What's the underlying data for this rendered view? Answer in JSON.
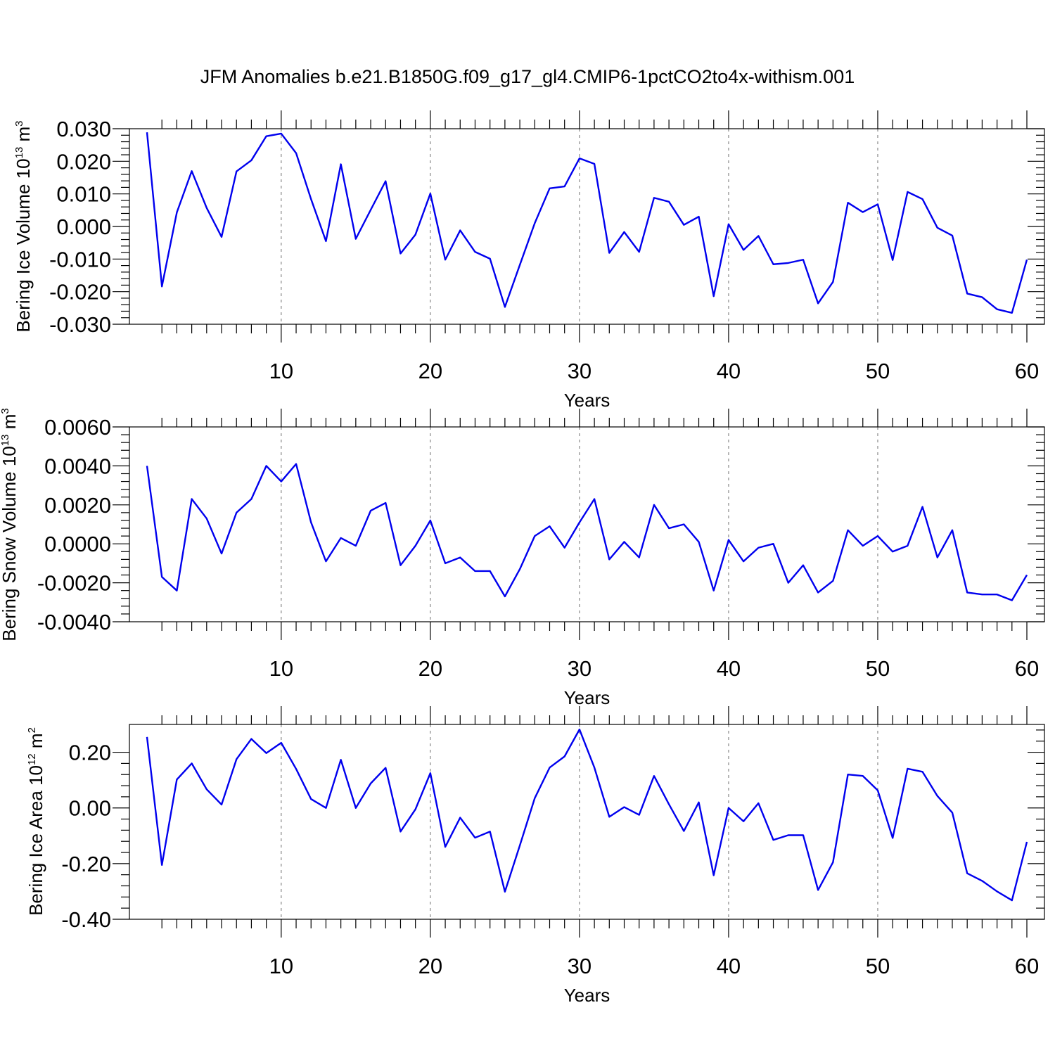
{
  "title": "JFM Anomalies b.e21.B1850G.f09_g17_gl4.CMIP6-1pctCO2to4x-withism.001",
  "colors": {
    "line": "#0000ee",
    "grid": "#888888"
  },
  "chart_data": [
    {
      "type": "line",
      "ylabel_main": "Bering Ice Volume 10",
      "ylabel_exp": "13",
      "ylabel_unit": " m",
      "ylabel_unit_exp": "3",
      "xlabel": "Years",
      "xlim": [
        1,
        60
      ],
      "ylim": [
        -0.03,
        0.03
      ],
      "xticks": [
        10,
        20,
        30,
        40,
        50,
        60
      ],
      "xtick_labels": [
        "10",
        "20",
        "30",
        "40",
        "50",
        "60"
      ],
      "yticks": [
        -0.03,
        -0.02,
        -0.01,
        0.0,
        0.01,
        0.02,
        0.03
      ],
      "ytick_labels": [
        "-0.030",
        "-0.020",
        "-0.010",
        "0.000",
        "0.010",
        "0.020",
        "0.030"
      ],
      "grid_x": [
        10,
        20,
        30,
        40,
        50
      ],
      "series": [
        {
          "values": [
            0.0289,
            -0.0184,
            0.0043,
            0.017,
            0.0057,
            -0.0032,
            0.0169,
            0.0203,
            0.0277,
            0.0285,
            0.0225,
            0.0084,
            -0.0045,
            0.0191,
            -0.0038,
            0.0051,
            0.0139,
            -0.0083,
            -0.0025,
            0.0101,
            -0.0102,
            -0.0012,
            -0.0078,
            -0.0099,
            -0.0247,
            -0.0118,
            0.001,
            0.0117,
            0.0123,
            0.0209,
            0.0192,
            -0.0081,
            -0.0017,
            -0.0078,
            0.0088,
            0.0076,
            0.0005,
            0.003,
            -0.0214,
            0.0007,
            -0.0072,
            -0.0029,
            -0.0116,
            -0.0112,
            -0.0102,
            -0.0236,
            -0.017,
            0.0073,
            0.0044,
            0.0068,
            -0.0103,
            0.0106,
            0.0084,
            -0.0004,
            -0.0028,
            -0.0206,
            -0.0217,
            -0.0254,
            -0.0265,
            -0.0102
          ]
        }
      ]
    },
    {
      "type": "line",
      "ylabel_main": "Bering Snow Volume 10",
      "ylabel_exp": "13",
      "ylabel_unit": " m",
      "ylabel_unit_exp": "3",
      "xlabel": "Years",
      "xlim": [
        1,
        60
      ],
      "ylim": [
        -0.004,
        0.006
      ],
      "xticks": [
        10,
        20,
        30,
        40,
        50,
        60
      ],
      "xtick_labels": [
        "10",
        "20",
        "30",
        "40",
        "50",
        "60"
      ],
      "yticks": [
        -0.004,
        -0.002,
        0.0,
        0.002,
        0.004,
        0.006
      ],
      "ytick_labels": [
        "-0.0040",
        "-0.0020",
        "0.0000",
        "0.0020",
        "0.0040",
        "0.0060"
      ],
      "grid_x": [
        10,
        20,
        30,
        40,
        50
      ],
      "series": [
        {
          "values": [
            0.004,
            -0.0017,
            -0.0024,
            0.0023,
            0.0013,
            -0.0005,
            0.0016,
            0.0023,
            0.004,
            0.0032,
            0.0041,
            0.0011,
            -0.0009,
            0.0003,
            -0.0001,
            0.0017,
            0.0021,
            -0.0011,
            -0.0001,
            0.0012,
            -0.001,
            -0.0007,
            -0.0014,
            -0.0014,
            -0.0027,
            -0.0013,
            0.0004,
            0.0009,
            -0.0002,
            0.0011,
            0.0023,
            -0.0008,
            0.0001,
            -0.0007,
            0.002,
            0.0008,
            0.001,
            0.0001,
            -0.0024,
            0.0002,
            -0.0009,
            -0.0002,
            -0.0,
            -0.002,
            -0.0011,
            -0.0025,
            -0.0019,
            0.0007,
            -0.0001,
            0.0004,
            -0.0004,
            -0.0001,
            0.0019,
            -0.0007,
            0.0007,
            -0.0025,
            -0.0026,
            -0.0026,
            -0.0029,
            -0.0016
          ]
        }
      ]
    },
    {
      "type": "line",
      "ylabel_main": "Bering Ice Area 10",
      "ylabel_exp": "12",
      "ylabel_unit": " m",
      "ylabel_unit_exp": "2",
      "xlabel": "Years",
      "xlim": [
        1,
        60
      ],
      "ylim": [
        -0.4,
        0.3
      ],
      "xticks": [
        10,
        20,
        30,
        40,
        50,
        60
      ],
      "xtick_labels": [
        "10",
        "20",
        "30",
        "40",
        "50",
        "60"
      ],
      "yticks": [
        -0.4,
        -0.2,
        0.0,
        0.2
      ],
      "ytick_labels": [
        "-0.40",
        "-0.20",
        "0.00",
        "0.20"
      ],
      "grid_x": [
        10,
        20,
        30,
        40,
        50
      ],
      "series": [
        {
          "values": [
            0.255,
            -0.205,
            0.102,
            0.16,
            0.067,
            0.012,
            0.175,
            0.248,
            0.197,
            0.234,
            0.14,
            0.032,
            0.0,
            0.173,
            0.0,
            0.088,
            0.144,
            -0.085,
            -0.005,
            0.125,
            -0.14,
            -0.035,
            -0.107,
            -0.085,
            -0.301,
            -0.135,
            0.035,
            0.145,
            0.185,
            0.282,
            0.145,
            -0.032,
            0.003,
            -0.025,
            0.115,
            0.013,
            -0.083,
            0.02,
            -0.242,
            0.0,
            -0.048,
            0.017,
            -0.115,
            -0.098,
            -0.098,
            -0.295,
            -0.195,
            0.12,
            0.115,
            0.063,
            -0.108,
            0.141,
            0.13,
            0.043,
            -0.017,
            -0.235,
            -0.262,
            -0.3,
            -0.332,
            -0.122
          ]
        }
      ]
    }
  ]
}
